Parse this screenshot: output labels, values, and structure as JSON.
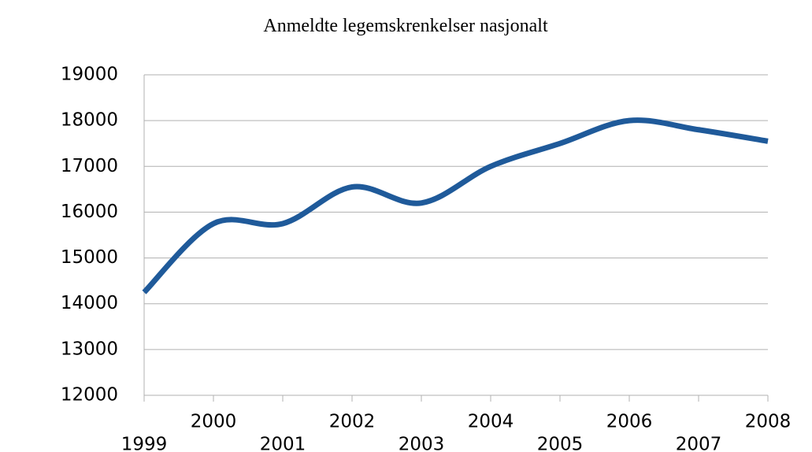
{
  "chart_data": {
    "type": "line",
    "title": "Anmeldte legemskrenkelser nasjonalt",
    "x": [
      1999,
      2000,
      2001,
      2002,
      2003,
      2004,
      2005,
      2006,
      2007,
      2008
    ],
    "series": [
      {
        "name": "Anmeldte legemskrenkelser",
        "color": "#1f5a9a",
        "values": [
          14250,
          15750,
          15750,
          16550,
          16200,
          17000,
          17500,
          18000,
          17800,
          17550
        ]
      }
    ],
    "xlim": [
      1999,
      2008
    ],
    "xticks": [
      1999,
      2000,
      2001,
      2002,
      2003,
      2004,
      2005,
      2006,
      2007,
      2008
    ],
    "ylim": [
      12000,
      19000
    ],
    "yticks": [
      12000,
      13000,
      14000,
      15000,
      16000,
      17000,
      18000,
      19000
    ],
    "grid": true
  }
}
